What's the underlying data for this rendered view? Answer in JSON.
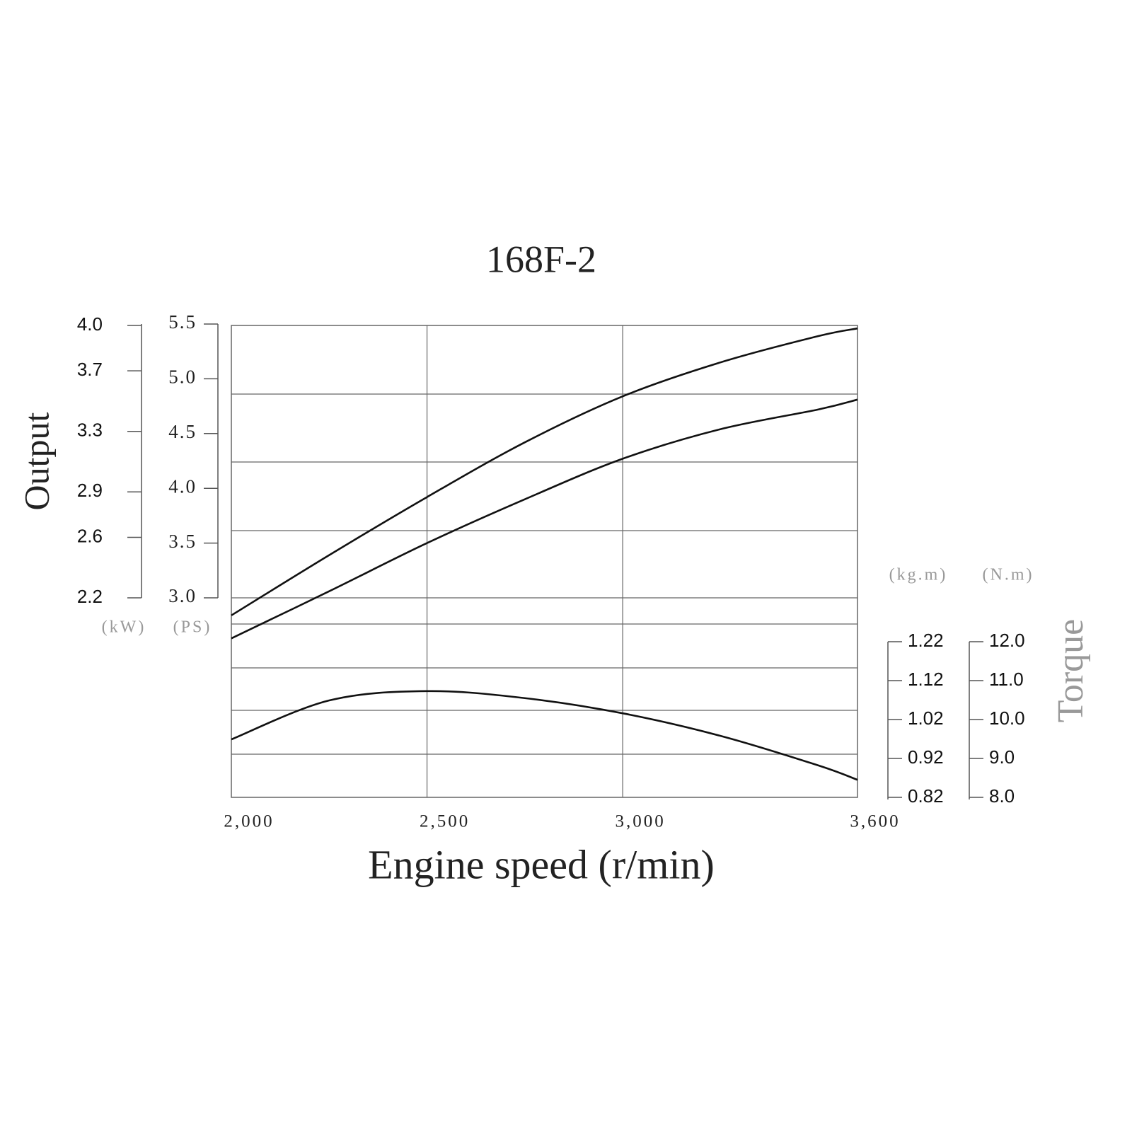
{
  "chart_data": {
    "type": "line",
    "title": "168F-2",
    "x_label": "Engine speed (r/min)",
    "y_label": "Output",
    "y2_label": "Torque",
    "kw_unit": "(kW)",
    "ps_unit": "(PS)",
    "kgm_unit": "(kg.m)",
    "nm_unit": "(N.m)",
    "x": [
      2000,
      2250,
      2500,
      2750,
      3000,
      3250,
      3500,
      3600
    ],
    "xlim": [
      2000,
      3600
    ],
    "xticks": [
      {
        "value": 2000,
        "label": "2,000"
      },
      {
        "value": 2500,
        "label": "2,500"
      },
      {
        "value": 3000,
        "label": "3,000"
      },
      {
        "value": 3600,
        "label": "3,600"
      }
    ],
    "ylim": [
      3.0,
      5.5
    ],
    "yticks": [
      {
        "value": 3.0,
        "label": "3.0"
      },
      3.5,
      {
        "value": 4.0,
        "label": "4.0"
      },
      4.5,
      {
        "value": 5.0,
        "label": "5.0"
      },
      5.5
    ],
    "kw_lim": [
      2.2,
      4.0
    ],
    "kw_ticks": [
      2.2,
      2.6,
      2.9,
      3.3,
      3.7,
      {
        "value": 4.0,
        "label": "4.0"
      }
    ],
    "y2lim": [
      8.0,
      12.0
    ],
    "y2ticks": [
      {
        "value": 8.0,
        "label": "8.0"
      },
      {
        "value": 9.0,
        "label": "9.0"
      },
      {
        "value": 10.0,
        "label": "10.0"
      },
      {
        "value": 11.0,
        "label": "11.0"
      },
      {
        "value": 12.0,
        "label": "12.0"
      }
    ],
    "kgm_lim": [
      0.82,
      1.22
    ],
    "kgm_ticks": [
      0.82,
      0.92,
      1.02,
      1.12,
      1.22
    ],
    "grid": true,
    "series": [
      {
        "color": "#111111",
        "axis": "y",
        "values": [
          2.84,
          3.39,
          3.92,
          4.42,
          4.84,
          5.15,
          5.39,
          5.46
        ]
      },
      {
        "color": "#111111",
        "axis": "y",
        "values": [
          2.63,
          3.06,
          3.5,
          3.9,
          4.27,
          4.54,
          4.72,
          4.81
        ]
      },
      {
        "color": "#111111",
        "axis": "y2",
        "values": [
          9.49,
          10.49,
          10.73,
          10.55,
          10.16,
          9.58,
          8.82,
          8.45
        ]
      }
    ]
  }
}
